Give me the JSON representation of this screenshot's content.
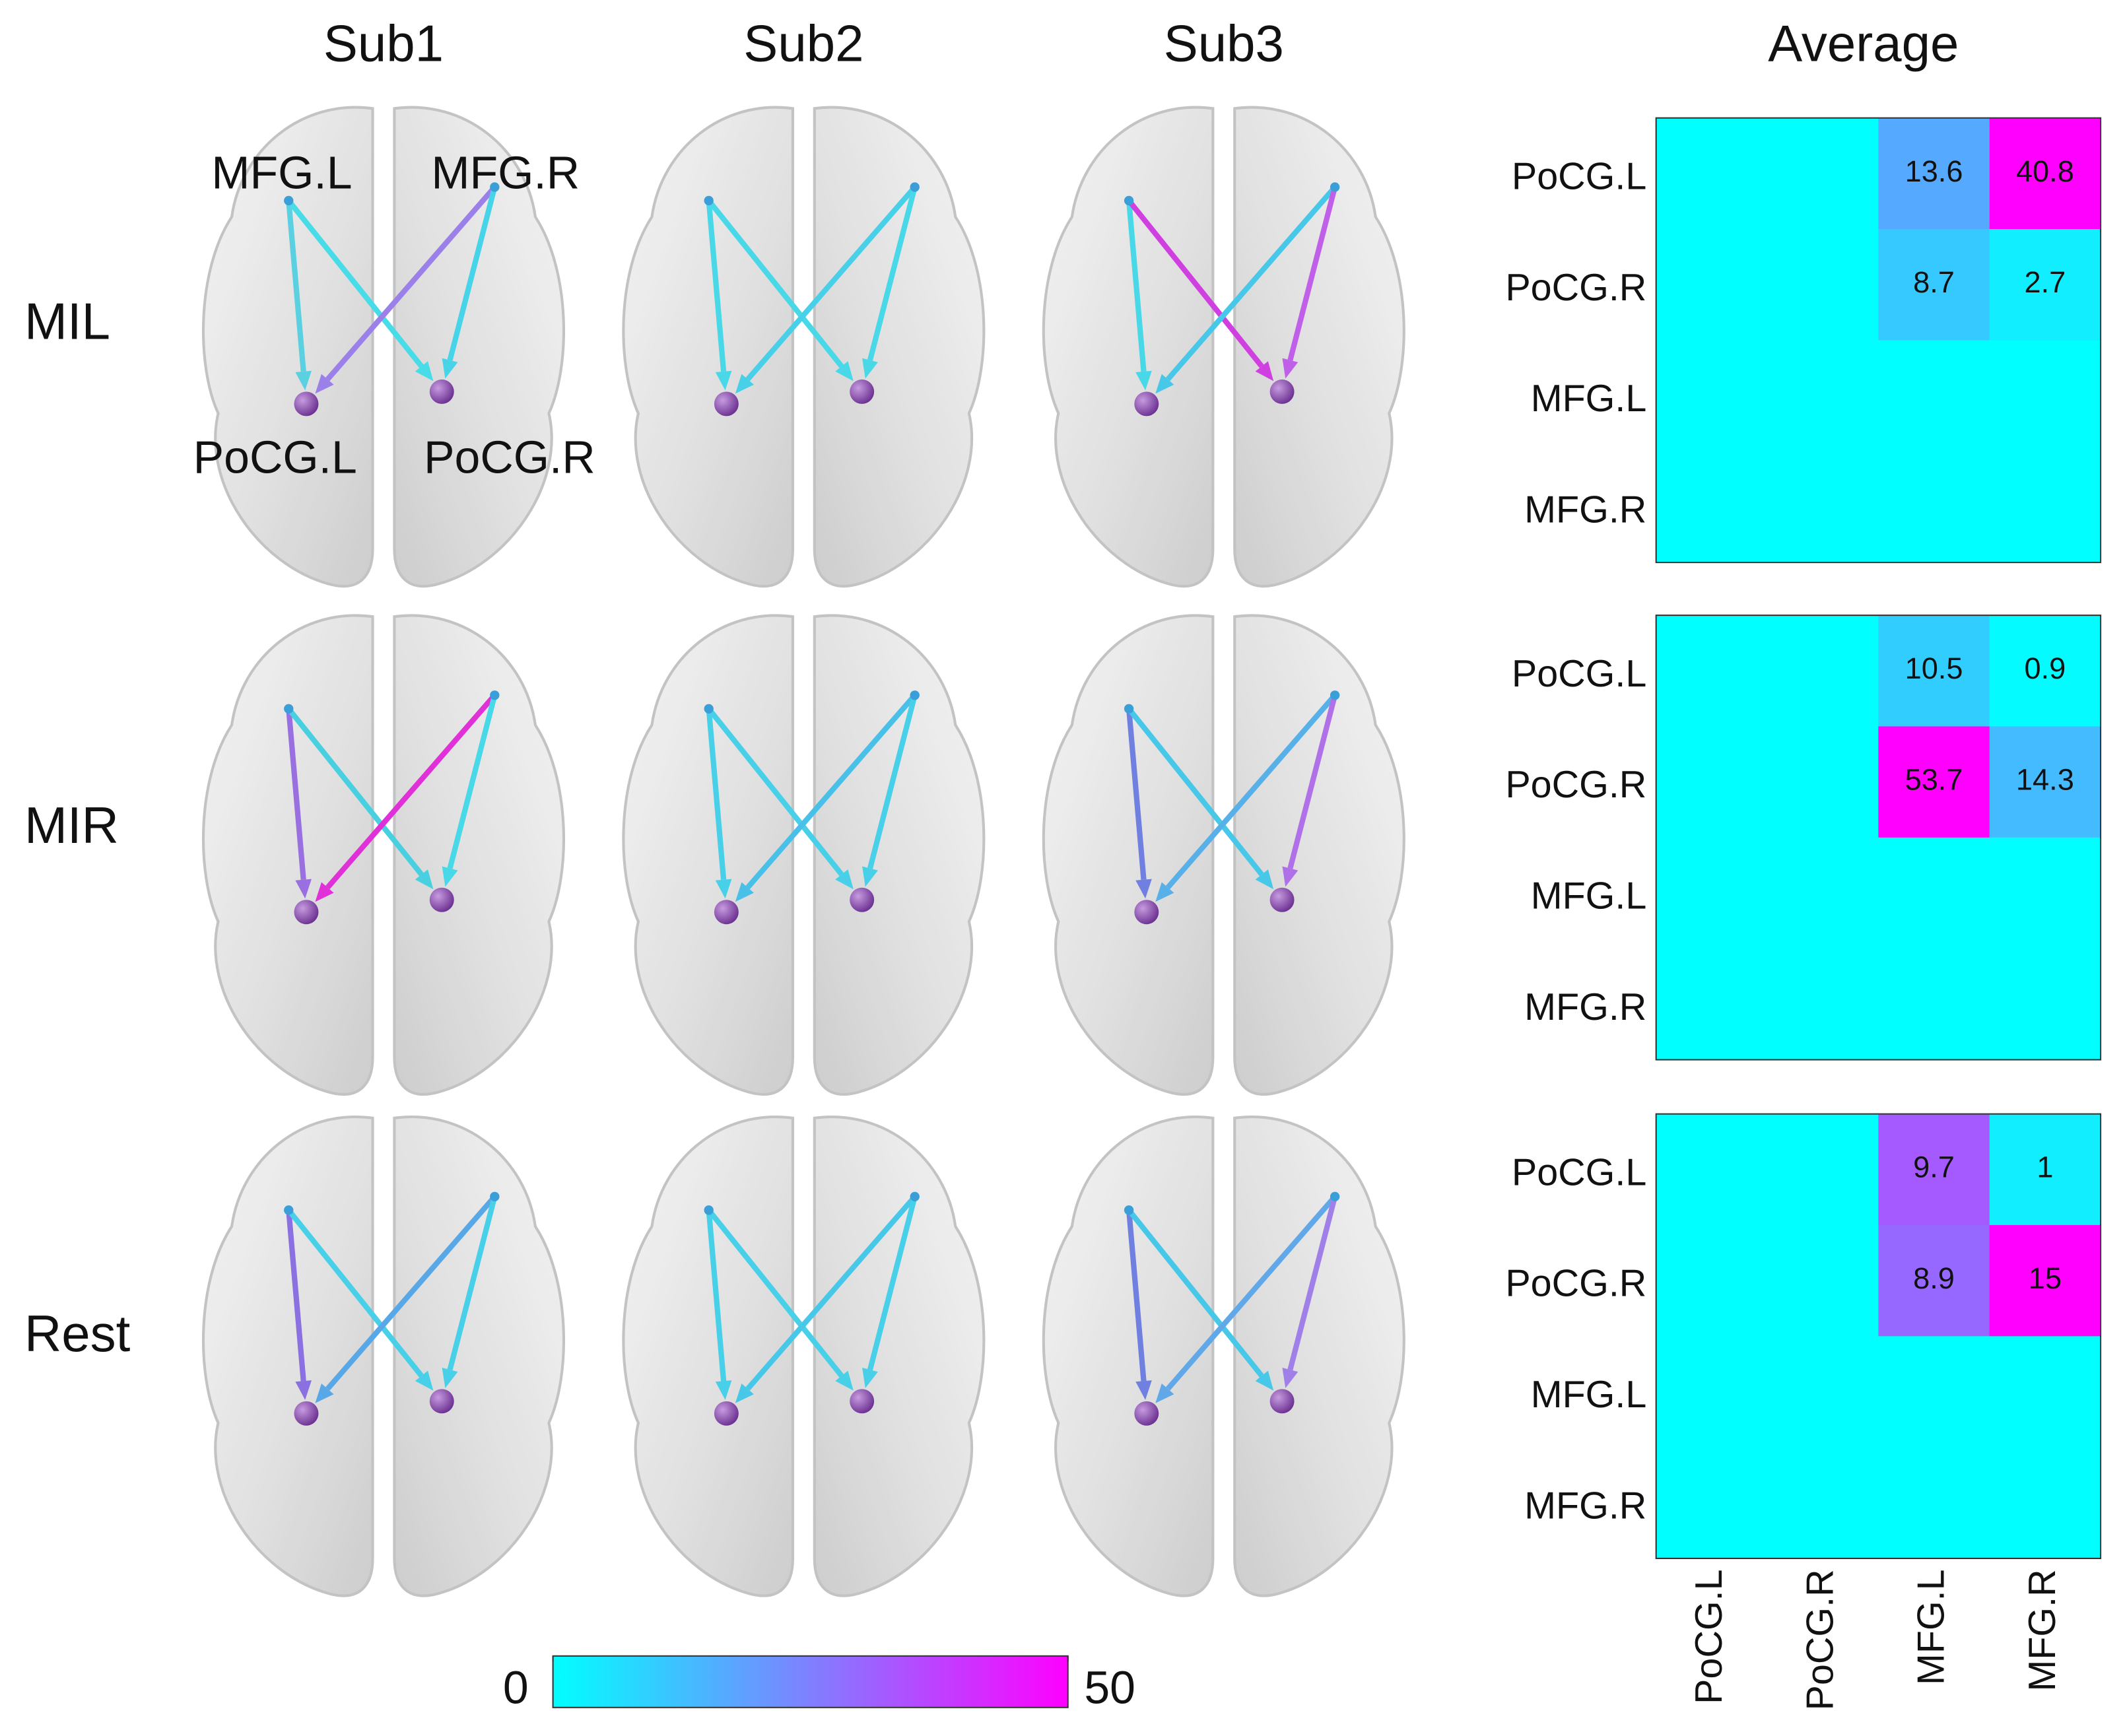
{
  "columns": [
    "Sub1",
    "Sub2",
    "Sub3"
  ],
  "rows": [
    "MIL",
    "MIR",
    "Rest"
  ],
  "brain_labels": {
    "mfg_l": "MFG.L",
    "mfg_r": "MFG.R",
    "pocg_l": "PoCG.L",
    "pocg_r": "PoCG.R"
  },
  "average_title": "Average",
  "colorbar": {
    "lim": [
      0,
      50
    ],
    "ticks": [
      0,
      50
    ],
    "colors": [
      "#00ffff",
      "#ff00ff"
    ]
  },
  "chart_data": [
    {
      "type": "heatmap",
      "x_categories": [
        "PoCG.L",
        "PoCG.R",
        "MFG.L",
        "MFG.R"
      ],
      "y_categories": [
        "PoCG.L",
        "PoCG.R",
        "MFG.L",
        "MFG.R"
      ],
      "values": [
        [
          0,
          0,
          13.6,
          40.8
        ],
        [
          0,
          0,
          8.7,
          2.7
        ],
        [
          0,
          0,
          0,
          0
        ],
        [
          0,
          0,
          0,
          0
        ]
      ],
      "zlim": [
        0,
        40.8
      ]
    },
    {
      "type": "heatmap",
      "x_categories": [
        "PoCG.L",
        "PoCG.R",
        "MFG.L",
        "MFG.R"
      ],
      "y_categories": [
        "PoCG.L",
        "PoCG.R",
        "MFG.L",
        "MFG.R"
      ],
      "values": [
        [
          0,
          0,
          10.5,
          0.9
        ],
        [
          0,
          0,
          53.7,
          14.3
        ],
        [
          0,
          0,
          0,
          0
        ],
        [
          0,
          0,
          0,
          0
        ]
      ],
      "zlim": [
        0,
        53.7
      ]
    },
    {
      "type": "heatmap",
      "x_categories": [
        "PoCG.L",
        "PoCG.R",
        "MFG.L",
        "MFG.R"
      ],
      "y_categories": [
        "PoCG.L",
        "PoCG.R",
        "MFG.L",
        "MFG.R"
      ],
      "values": [
        [
          0,
          0,
          9.7,
          1
        ],
        [
          0,
          0,
          8.9,
          15
        ],
        [
          0,
          0,
          0,
          0
        ],
        [
          0,
          0,
          0,
          0
        ]
      ],
      "zlim": [
        0,
        15
      ]
    }
  ]
}
